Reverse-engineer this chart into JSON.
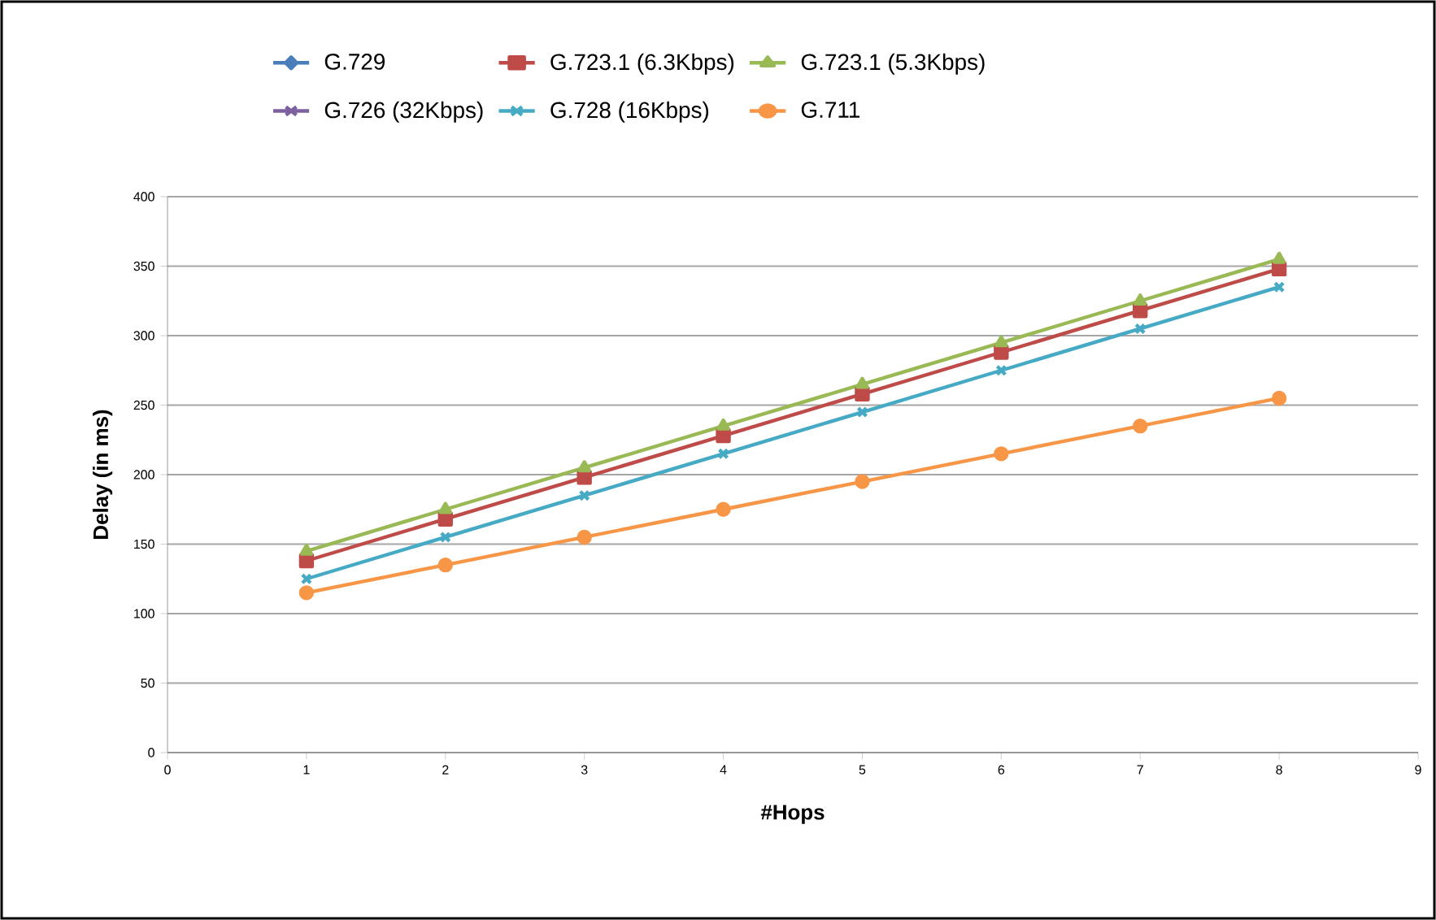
{
  "chart_data": {
    "type": "line",
    "xlabel": "#Hops",
    "ylabel": "Delay (in ms)",
    "x": [
      1,
      2,
      3,
      4,
      5,
      6,
      7,
      8
    ],
    "xlim": [
      0,
      9
    ],
    "xticks": [
      0,
      1,
      2,
      3,
      4,
      5,
      6,
      7,
      8,
      9
    ],
    "ylim": [
      0,
      400
    ],
    "yticks": [
      0,
      50,
      100,
      150,
      200,
      250,
      300,
      350,
      400
    ],
    "grid": "y",
    "legend": "top",
    "series": [
      {
        "name": "G.729",
        "color": "#4a7ebb",
        "marker": "diamond",
        "values": [
          null,
          null,
          null,
          null,
          null,
          null,
          null,
          null
        ]
      },
      {
        "name": "G.723.1 (6.3Kbps)",
        "color": "#be4b48",
        "marker": "square",
        "values": [
          138,
          168,
          198,
          228,
          258,
          288,
          318,
          348
        ]
      },
      {
        "name": "G.723.1 (5.3Kbps)",
        "color": "#98b954",
        "marker": "triangle",
        "values": [
          145,
          175,
          205,
          235,
          265,
          295,
          325,
          355
        ]
      },
      {
        "name": "G.726 (32Kbps)",
        "color": "#7d60a0",
        "marker": "cross",
        "values": [
          null,
          null,
          null,
          null,
          null,
          null,
          null,
          null
        ]
      },
      {
        "name": "G.728 (16Kbps)",
        "color": "#46aac5",
        "marker": "cross",
        "values": [
          125,
          155,
          185,
          215,
          245,
          275,
          305,
          335
        ]
      },
      {
        "name": "G.711",
        "color": "#f79646",
        "marker": "circle",
        "values": [
          115,
          135,
          155,
          175,
          195,
          215,
          235,
          255
        ]
      }
    ]
  }
}
